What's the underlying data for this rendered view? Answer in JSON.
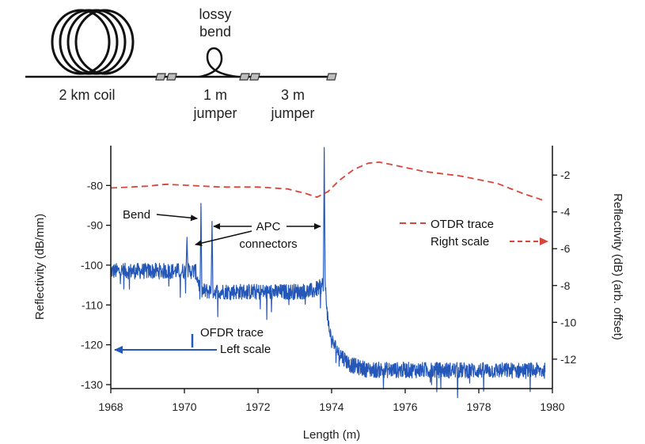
{
  "diagram": {
    "coil_label": "2 km coil",
    "bend_label_line1": "lossy",
    "bend_label_line2": "bend",
    "jumper1_line1": "1 m",
    "jumper1_line2": "jumper",
    "jumper2_line1": "3 m",
    "jumper2_line2": "jumper"
  },
  "chart_data": {
    "type": "line",
    "title": "",
    "xlabel": "Length (m)",
    "ylabel_left": "Reflectivity (dB/mm)",
    "ylabel_right": "Reflectivity (dB) (arb. offset)",
    "xlim": [
      1968,
      1980
    ],
    "ylim_left": [
      -131,
      -70
    ],
    "ylim_right": [
      -13.6,
      -0.4
    ],
    "x_ticks": [
      1968,
      1970,
      1972,
      1974,
      1976,
      1978,
      1980
    ],
    "y_ticks_left": [
      -130,
      -120,
      -110,
      -100,
      -90,
      -80
    ],
    "y_ticks_right": [
      -12,
      -10,
      -8,
      -6,
      -4,
      -2
    ],
    "grid": false,
    "series": [
      {
        "name": "OFDR trace",
        "axis": "left",
        "color": "#2457b8",
        "style": "solid",
        "noise": 2.0,
        "baseline": [
          [
            1968.0,
            -101.5
          ],
          [
            1970.3,
            -101.5
          ],
          [
            1970.45,
            -106.5
          ],
          [
            1972.5,
            -106.8
          ],
          [
            1973.5,
            -106.5
          ],
          [
            1973.7,
            -105.5
          ],
          [
            1973.82,
            -104
          ],
          [
            1973.9,
            -114
          ],
          [
            1974.0,
            -119
          ],
          [
            1974.2,
            -122
          ],
          [
            1974.5,
            -125
          ],
          [
            1975.0,
            -126.3
          ],
          [
            1979.8,
            -126.5
          ]
        ],
        "peaks": [
          [
            1970.07,
            -93
          ],
          [
            1970.45,
            -84.5
          ],
          [
            1970.75,
            -89
          ],
          [
            1973.8,
            -70.5
          ]
        ]
      },
      {
        "name": "OTDR trace",
        "axis": "right",
        "color": "#d9453a",
        "style": "dashed",
        "points": [
          [
            1968.0,
            -2.7
          ],
          [
            1969.0,
            -2.6
          ],
          [
            1969.5,
            -2.5
          ],
          [
            1970.0,
            -2.55
          ],
          [
            1971.0,
            -2.65
          ],
          [
            1972.0,
            -2.65
          ],
          [
            1972.8,
            -2.75
          ],
          [
            1973.3,
            -3.0
          ],
          [
            1973.6,
            -3.2
          ],
          [
            1973.9,
            -2.9
          ],
          [
            1974.2,
            -2.3
          ],
          [
            1974.6,
            -1.7
          ],
          [
            1975.0,
            -1.35
          ],
          [
            1975.3,
            -1.3
          ],
          [
            1975.8,
            -1.5
          ],
          [
            1976.5,
            -1.8
          ],
          [
            1977.5,
            -2.05
          ],
          [
            1978.5,
            -2.45
          ],
          [
            1979.2,
            -3.0
          ],
          [
            1979.8,
            -3.4
          ]
        ]
      }
    ],
    "annotations": {
      "bend": "Bend",
      "apc_line1": "APC",
      "apc_line2": "connectors",
      "ofdr_legend": "OFDR trace",
      "left_scale": "Left scale",
      "otdr_legend": "OTDR trace",
      "right_scale": "Right scale"
    }
  }
}
